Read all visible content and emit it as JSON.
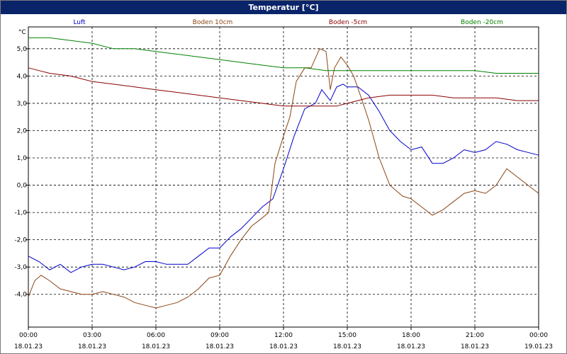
{
  "window": {
    "title": "Temperatur [°C]"
  },
  "chart_data": {
    "type": "line",
    "title": "Temperatur [°C]",
    "ylabel": "°C",
    "ylim": [
      -5.2,
      5.8
    ],
    "yticks": [
      5.0,
      4.0,
      3.0,
      2.0,
      1.0,
      0.0,
      -1.0,
      -2.0,
      -3.0,
      -4.0
    ],
    "ytick_labels": [
      "5,0",
      "4,0",
      "3,0",
      "2,0",
      "1,0",
      "0,0",
      "-1,0",
      "-2,0",
      "-3,0",
      "-4,0"
    ],
    "xlim": [
      0,
      24
    ],
    "xticks": [
      0,
      3,
      6,
      9,
      12,
      15,
      18,
      21,
      24
    ],
    "xtick_time_labels": [
      "00:00",
      "03:00",
      "06:00",
      "09:00",
      "12:00",
      "15:00",
      "18:00",
      "21:00",
      "00:00"
    ],
    "xtick_date_labels": [
      "18.01.23",
      "18.01.23",
      "18.01.23",
      "18.01.23",
      "18.01.23",
      "18.01.23",
      "18.01.23",
      "18.01.23",
      "19.01.23"
    ],
    "grid": true,
    "legend_placement": "top",
    "series": [
      {
        "name": "Luft",
        "color": "#0000cc",
        "x": [
          0,
          0.5,
          1,
          1.5,
          2,
          2.5,
          3,
          3.5,
          4,
          4.5,
          5,
          5.5,
          6,
          6.5,
          7,
          7.5,
          8,
          8.5,
          9,
          9.5,
          10,
          10.5,
          11,
          11.5,
          12,
          12.5,
          13,
          13.5,
          13.8,
          14.2,
          14.5,
          14.8,
          15,
          15.5,
          16,
          16.5,
          17,
          17.5,
          18,
          18.5,
          19,
          19.5,
          20,
          20.5,
          21,
          21.5,
          22,
          22.5,
          23,
          23.5,
          24
        ],
        "y": [
          -2.6,
          -2.8,
          -3.1,
          -2.9,
          -3.2,
          -3.0,
          -2.9,
          -2.9,
          -3.0,
          -3.1,
          -3.0,
          -2.8,
          -2.8,
          -2.9,
          -2.9,
          -2.9,
          -2.6,
          -2.3,
          -2.3,
          -1.9,
          -1.6,
          -1.2,
          -0.8,
          -0.5,
          0.6,
          1.8,
          2.8,
          3.0,
          3.5,
          3.1,
          3.6,
          3.7,
          3.6,
          3.6,
          3.3,
          2.7,
          2.0,
          1.6,
          1.3,
          1.4,
          0.8,
          0.8,
          1.0,
          1.3,
          1.2,
          1.3,
          1.6,
          1.5,
          1.3,
          1.2,
          1.1
        ]
      },
      {
        "name": "Boden 10cm",
        "color": "#8b4513",
        "x": [
          0,
          0.3,
          0.6,
          1,
          1.5,
          2,
          2.5,
          3,
          3.5,
          4,
          4.5,
          5,
          5.5,
          6,
          6.5,
          7,
          7.5,
          8,
          8.5,
          9,
          9.5,
          10,
          10.5,
          11,
          11.3,
          11.6,
          12,
          12.3,
          12.6,
          13,
          13.3,
          13.7,
          14,
          14.2,
          14.4,
          14.7,
          15,
          15.3,
          15.7,
          16,
          16.5,
          17,
          17.3,
          17.6,
          18,
          18.5,
          19,
          19.5,
          20,
          20.5,
          21,
          21.5,
          22,
          22.5,
          23,
          23.5,
          24
        ],
        "y": [
          -4.1,
          -3.5,
          -3.3,
          -3.5,
          -3.8,
          -3.9,
          -4.0,
          -4.0,
          -3.9,
          -4.0,
          -4.1,
          -4.3,
          -4.4,
          -4.5,
          -4.4,
          -4.3,
          -4.1,
          -3.8,
          -3.4,
          -3.3,
          -2.6,
          -2.0,
          -1.5,
          -1.2,
          -1.0,
          0.8,
          1.8,
          2.5,
          3.8,
          4.3,
          4.3,
          5.0,
          4.9,
          3.5,
          4.3,
          4.7,
          4.4,
          4.0,
          3.1,
          2.4,
          1.0,
          0.0,
          -0.2,
          -0.4,
          -0.5,
          -0.8,
          -1.1,
          -0.9,
          -0.6,
          -0.3,
          -0.2,
          -0.3,
          0.0,
          0.6,
          0.3,
          0.0,
          -0.3
        ]
      },
      {
        "name": "Boden -5cm",
        "color": "#8b0000",
        "x": [
          0,
          0.5,
          1,
          2,
          3,
          4,
          5,
          6,
          7,
          8,
          9,
          10,
          11,
          12,
          13,
          14,
          14.5,
          15,
          15.5,
          16,
          17,
          18,
          19,
          20,
          21,
          22,
          23,
          24
        ],
        "y": [
          4.3,
          4.2,
          4.1,
          4.0,
          3.8,
          3.7,
          3.6,
          3.5,
          3.4,
          3.3,
          3.2,
          3.1,
          3.0,
          2.9,
          2.9,
          2.9,
          2.9,
          3.0,
          3.1,
          3.2,
          3.3,
          3.3,
          3.3,
          3.2,
          3.2,
          3.2,
          3.1,
          3.1
        ]
      },
      {
        "name": "Boden -20cm",
        "color": "#008000",
        "x": [
          0,
          1,
          2,
          3,
          4,
          5,
          6,
          7,
          8,
          9,
          10,
          11,
          12,
          13,
          14,
          15,
          16,
          17,
          18,
          19,
          20,
          21,
          22,
          23,
          24
        ],
        "y": [
          5.4,
          5.4,
          5.3,
          5.2,
          5.0,
          5.0,
          4.9,
          4.8,
          4.7,
          4.6,
          4.5,
          4.4,
          4.3,
          4.3,
          4.2,
          4.2,
          4.2,
          4.2,
          4.2,
          4.2,
          4.2,
          4.2,
          4.1,
          4.1,
          4.1
        ]
      }
    ]
  }
}
